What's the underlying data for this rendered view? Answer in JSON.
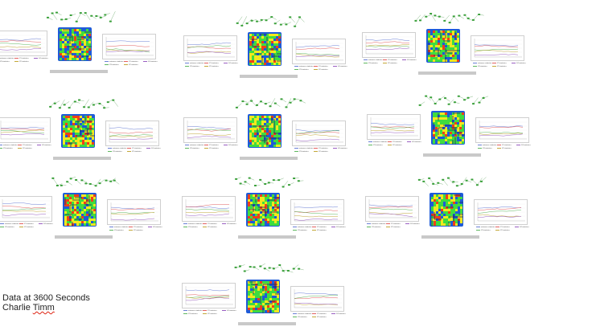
{
  "caption": {
    "line1": "Data at 3600 Seconds",
    "line2_first": "Charlie",
    "line2_last": "Timm"
  },
  "colors": {
    "heat_low": "#1e5bd8",
    "heat_mid": "#3fdc3f",
    "heat_high": "#f2e81e",
    "heat_hot": "#f04018",
    "flow_node": "#3aa03a",
    "grey_bar": "#c9c9c9"
  },
  "panels": [
    {
      "id": "p1",
      "legend": [
        "entrance statistics",
        "X1 statistics",
        "X3 statistics",
        "X2 statistics",
        "X4 statistics"
      ]
    },
    {
      "id": "p2",
      "legend": [
        "entrance statistics",
        "X1 statistics",
        "X3 statistics",
        "X2 statistics",
        "X4 statistics"
      ]
    },
    {
      "id": "p3",
      "legend": [
        "entrance statistics",
        "X1 statistics",
        "X3 statistics",
        "X2 statistics",
        "X4 statistics"
      ]
    },
    {
      "id": "p4",
      "legend": [
        "entrance statistics",
        "X1 statistics",
        "X3 statistics",
        "X2 statistics",
        "X4 statistics"
      ]
    },
    {
      "id": "p5",
      "legend": [
        "entrance statistics",
        "X1 statistics",
        "X3 statistics",
        "X2 statistics",
        "X4 statistics"
      ]
    },
    {
      "id": "p6",
      "legend": [
        "entrance statistics",
        "X1 statistics",
        "X3 statistics",
        "X2 statistics",
        "X4 statistics"
      ]
    },
    {
      "id": "p7",
      "legend": [
        "entrance statistics",
        "X1 statistics",
        "X3 statistics",
        "X2 statistics",
        "X4 statistics"
      ]
    },
    {
      "id": "p8",
      "legend": [
        "entrance statistics",
        "X1 statistics",
        "X3 statistics",
        "X2 statistics",
        "X4 statistics"
      ]
    },
    {
      "id": "p9",
      "legend": [
        "entrance statistics",
        "X1 statistics",
        "X3 statistics",
        "X2 statistics",
        "X4 statistics"
      ]
    },
    {
      "id": "p10",
      "legend": [
        "entrance statistics",
        "X1 statistics",
        "X3 statistics",
        "X2 statistics",
        "X4 statistics"
      ]
    }
  ]
}
